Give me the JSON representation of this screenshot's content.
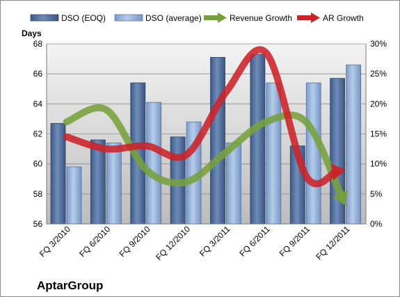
{
  "chart_data": {
    "type": "bar",
    "categories": [
      "FQ 3/2010",
      "FQ 6/2010",
      "FQ 9/2010",
      "FQ 12/2010",
      "FQ 3/2011",
      "FQ 6/2011",
      "FQ 9/2011",
      "FQ 12/2011"
    ],
    "series": [
      {
        "name": "DSO (EOQ)",
        "type": "bar",
        "axis": "left",
        "color": "#4f6d9a",
        "values": [
          62.7,
          61.6,
          65.4,
          61.8,
          67.1,
          67.3,
          61.2,
          65.7
        ]
      },
      {
        "name": "DSO (average)",
        "type": "bar",
        "axis": "left",
        "color": "#8fb0dc",
        "values": [
          59.8,
          61.4,
          64.1,
          62.8,
          61.4,
          65.4,
          65.4,
          66.6
        ]
      },
      {
        "name": "Revenue Growth",
        "type": "line",
        "axis": "right",
        "color": "#77a03c",
        "values": [
          17,
          19,
          9,
          7,
          12,
          17,
          17,
          3
        ]
      },
      {
        "name": "AR Growth",
        "type": "line",
        "axis": "right",
        "color": "#cc2229",
        "values": [
          14.5,
          12.5,
          13,
          11.5,
          22,
          28.5,
          8,
          9
        ]
      }
    ],
    "ylabel": "Days",
    "ylim": [
      56,
      68
    ],
    "yticks": [
      "56",
      "58",
      "60",
      "62",
      "64",
      "66",
      "68"
    ],
    "y2lim": [
      0,
      30
    ],
    "y2ticks": [
      "0%",
      "5%",
      "10%",
      "15%",
      "20%",
      "25%",
      "30%"
    ],
    "grid": true,
    "legend": "top",
    "annotation": "AptarGroup"
  }
}
